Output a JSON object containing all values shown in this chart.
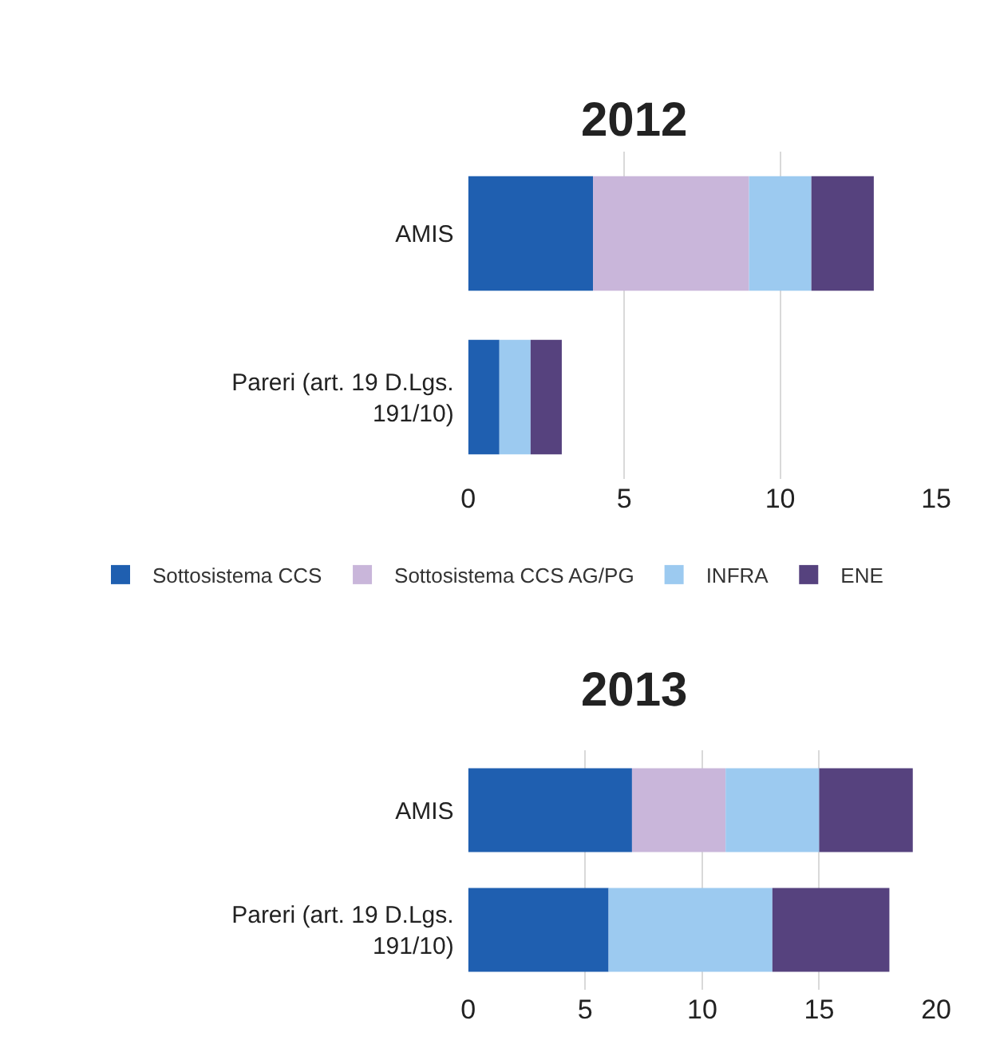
{
  "chart_data": [
    {
      "type": "bar",
      "title": "2012",
      "orientation": "horizontal",
      "stacked": true,
      "categories": [
        "AMIS",
        "Pareri (art. 19 D.Lgs. 191/10)"
      ],
      "xlim": [
        0,
        15
      ],
      "xticks": [
        0,
        5,
        10,
        15
      ],
      "grid": "x",
      "legend": "bottom",
      "series": [
        {
          "name": "Sottosistema CCS",
          "color": "#1f5fb0",
          "values": [
            4,
            1
          ]
        },
        {
          "name": "Sottosistema CCS AG/PG",
          "color": "#c9b6da",
          "values": [
            5,
            0
          ]
        },
        {
          "name": "INFRA",
          "color": "#9ccaf0",
          "values": [
            2,
            1
          ]
        },
        {
          "name": "ENE",
          "color": "#56427e",
          "values": [
            2,
            1
          ]
        }
      ]
    },
    {
      "type": "bar",
      "title": "2013",
      "orientation": "horizontal",
      "stacked": true,
      "categories": [
        "AMIS",
        "Pareri (art. 19 D.Lgs. 191/10)"
      ],
      "xlim": [
        0,
        20
      ],
      "xticks": [
        0,
        5,
        10,
        15,
        20
      ],
      "grid": "x",
      "series": [
        {
          "color": "#1f5fb0",
          "values": [
            7,
            6
          ]
        },
        {
          "color": "#c9b6da",
          "values": [
            4,
            0
          ]
        },
        {
          "color": "#9ccaf0",
          "values": [
            4,
            7
          ]
        },
        {
          "color": "#56427e",
          "values": [
            4,
            5
          ]
        }
      ]
    }
  ]
}
